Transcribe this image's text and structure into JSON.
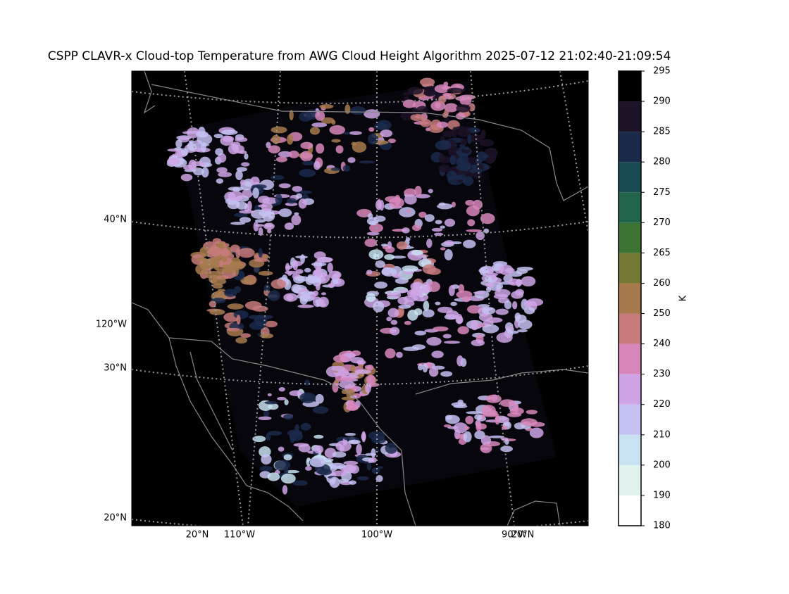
{
  "title": "CSPP CLAVR-x Cloud-top Temperature from AWG Cloud Height Algorithm 2025-07-12 21:02:40-21:09:54",
  "map": {
    "lat_labels": [
      "40°N",
      "30°N",
      "20°N"
    ],
    "lon_labels": [
      "120°W",
      "20°N",
      "110°W",
      "100°W",
      "90°W",
      "20°N"
    ]
  },
  "colorbar": {
    "label": "K",
    "ticks": [
      180,
      190,
      200,
      210,
      220,
      230,
      240,
      250,
      260,
      265,
      270,
      275,
      280,
      285,
      290,
      295
    ],
    "colors": [
      "#ffffff",
      "#e0f3ee",
      "#c8e2f2",
      "#c4c2f2",
      "#cfa4e6",
      "#d887bc",
      "#c77b7b",
      "#a67a4c",
      "#737935",
      "#3d7333",
      "#20654a",
      "#184a52",
      "#1b2a4b",
      "#1c1327",
      "#000000"
    ]
  }
}
